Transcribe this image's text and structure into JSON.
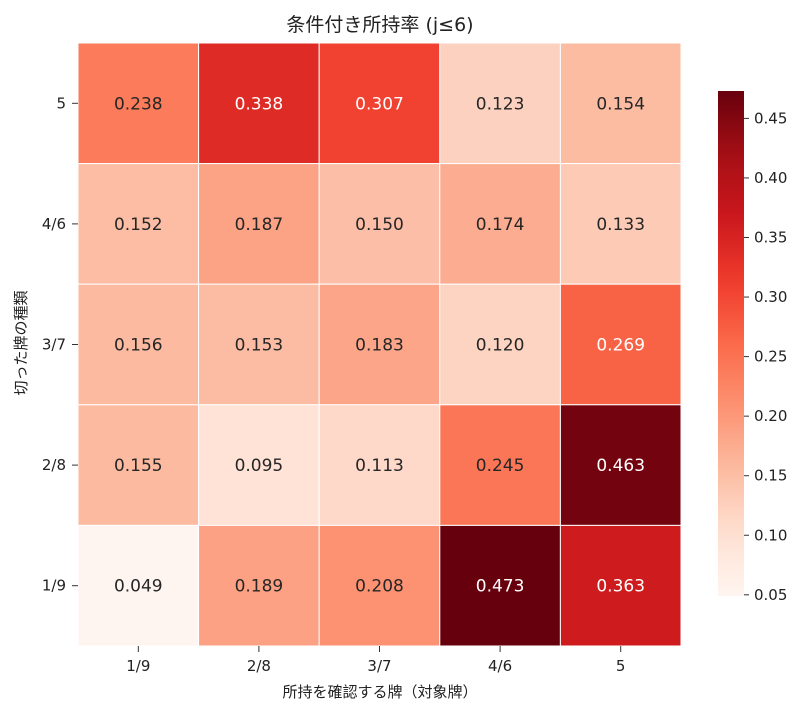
{
  "chart_data": {
    "type": "heatmap",
    "title": "条件付き所持率 (j≤6)",
    "xlabel": "所持を確認する牌（対象牌）",
    "ylabel": "切った牌の種類",
    "x_categories": [
      "1/9",
      "2/8",
      "3/7",
      "4/6",
      "5"
    ],
    "y_categories": [
      "5",
      "4/6",
      "3/7",
      "2/8",
      "1/9"
    ],
    "values": [
      [
        0.238,
        0.338,
        0.307,
        0.123,
        0.154
      ],
      [
        0.152,
        0.187,
        0.15,
        0.174,
        0.133
      ],
      [
        0.156,
        0.153,
        0.183,
        0.12,
        0.269
      ],
      [
        0.155,
        0.095,
        0.113,
        0.245,
        0.463
      ],
      [
        0.049,
        0.189,
        0.208,
        0.473,
        0.363
      ]
    ],
    "value_labels": [
      [
        "0.238",
        "0.338",
        "0.307",
        "0.123",
        "0.154"
      ],
      [
        "0.152",
        "0.187",
        "0.150",
        "0.174",
        "0.133"
      ],
      [
        "0.156",
        "0.153",
        "0.183",
        "0.120",
        "0.269"
      ],
      [
        "0.155",
        "0.095",
        "0.113",
        "0.245",
        "0.463"
      ],
      [
        "0.049",
        "0.189",
        "0.208",
        "0.473",
        "0.363"
      ]
    ],
    "colorbar": {
      "colormap": "Reds",
      "range": [
        0.049,
        0.473
      ],
      "ticks": [
        0.05,
        0.1,
        0.15,
        0.2,
        0.25,
        0.3,
        0.35,
        0.4,
        0.45
      ],
      "tick_labels": [
        "0.05",
        "0.10",
        "0.15",
        "0.20",
        "0.25",
        "0.30",
        "0.35",
        "0.40",
        "0.45"
      ],
      "placement": "right"
    },
    "grid": false
  }
}
